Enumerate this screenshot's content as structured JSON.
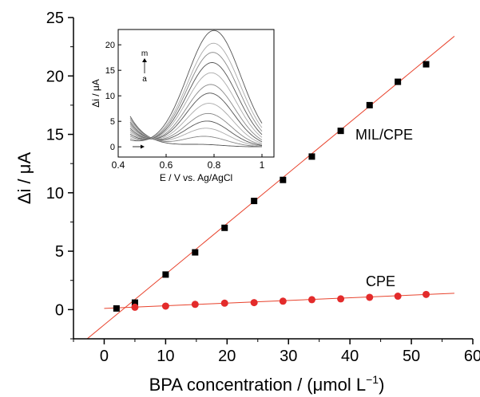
{
  "chart_data": [
    {
      "type": "scatter",
      "xlabel": "BPA concentration / (μmol L",
      "xlabel_sup": "−1",
      "xlabel_close": ")",
      "ylabel": "Δi / μA",
      "xlim": [
        -5,
        60
      ],
      "ylim": [
        -2.5,
        25
      ],
      "xticks": [
        0,
        10,
        20,
        30,
        40,
        50,
        60
      ],
      "yticks": [
        0,
        5,
        10,
        15,
        20,
        25
      ],
      "series": [
        {
          "name": "MIL/CPE",
          "marker": "square",
          "color": "#000000",
          "fit_color": "#e8432d",
          "fit_line": {
            "x": [
              -3,
              57
            ],
            "y": [
              -2.6,
              23.4
            ]
          },
          "x": [
            2,
            5,
            10,
            14.8,
            19.6,
            24.4,
            29.1,
            33.8,
            38.5,
            43.2,
            47.8,
            52.4
          ],
          "y": [
            0.1,
            0.6,
            3.0,
            4.9,
            7.0,
            9.3,
            11.1,
            13.1,
            15.3,
            17.5,
            19.5,
            21.0
          ]
        },
        {
          "name": "CPE",
          "marker": "circle",
          "color": "#e32b2b",
          "fit_color": "#e8432d",
          "fit_line": {
            "x": [
              0,
              57
            ],
            "y": [
              0.1,
              1.4
            ]
          },
          "x": [
            5,
            10,
            14.8,
            19.6,
            24.4,
            29.1,
            33.8,
            38.5,
            43.2,
            47.8,
            52.4
          ],
          "y": [
            0.2,
            0.3,
            0.45,
            0.55,
            0.6,
            0.72,
            0.85,
            0.92,
            1.05,
            1.15,
            1.3
          ]
        }
      ]
    },
    {
      "type": "line",
      "inset": true,
      "xlabel": "E / V vs. Ag/AgCl",
      "ylabel": "Δi / μA",
      "xlim": [
        0.4,
        1.05
      ],
      "ylim": [
        -2,
        23
      ],
      "xticks": [
        0.4,
        0.6,
        0.8,
        1.0
      ],
      "yticks": [
        0,
        5,
        10,
        15,
        20
      ],
      "annotation": {
        "top": "m",
        "bottom": "a"
      },
      "curves": [
        {
          "peak_x": 0.755,
          "peak_y": 0.4,
          "width": 0.085,
          "lead": 6.0
        },
        {
          "peak_x": 0.762,
          "peak_y": 2.0,
          "width": 0.09,
          "lead": 5.6
        },
        {
          "peak_x": 0.768,
          "peak_y": 3.6,
          "width": 0.092,
          "lead": 5.2
        },
        {
          "peak_x": 0.772,
          "peak_y": 5.0,
          "width": 0.094,
          "lead": 4.8
        },
        {
          "peak_x": 0.776,
          "peak_y": 6.5,
          "width": 0.096,
          "lead": 4.4
        },
        {
          "peak_x": 0.78,
          "peak_y": 8.5,
          "width": 0.098,
          "lead": 4.0
        },
        {
          "peak_x": 0.783,
          "peak_y": 10.5,
          "width": 0.1,
          "lead": 3.6
        },
        {
          "peak_x": 0.786,
          "peak_y": 12.2,
          "width": 0.102,
          "lead": 3.2
        },
        {
          "peak_x": 0.789,
          "peak_y": 14.5,
          "width": 0.104,
          "lead": 2.8
        },
        {
          "peak_x": 0.792,
          "peak_y": 16.5,
          "width": 0.106,
          "lead": 2.4
        },
        {
          "peak_x": 0.795,
          "peak_y": 18.5,
          "width": 0.108,
          "lead": 2.0
        },
        {
          "peak_x": 0.798,
          "peak_y": 20.3,
          "width": 0.11,
          "lead": 1.6
        },
        {
          "peak_x": 0.8,
          "peak_y": 22.8,
          "width": 0.112,
          "lead": 1.2
        }
      ]
    }
  ]
}
